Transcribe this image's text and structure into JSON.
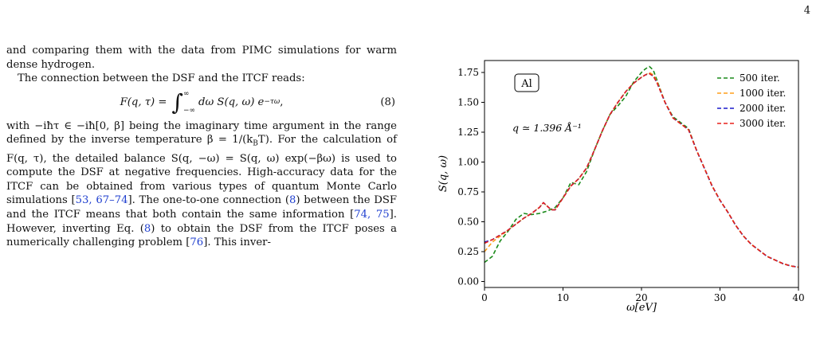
{
  "page": {
    "number": "4"
  },
  "left_column": {
    "para1": "and comparing them with the data from PIMC simulations for warm dense hydrogen.",
    "para2": "The connection between the DSF and the ITCF reads:",
    "equation": {
      "lhs": "F(q, τ) =",
      "lower": "−∞",
      "upper": "∞",
      "body": "dω S(q, ω) e",
      "exponent": "−τω",
      "tail": ",",
      "number": "(8)"
    },
    "para3_a": "with −iħτ ∈ −iħ[0, β] being the imaginary time argument in the range defined by the inverse temperature β = 1/(k",
    "para3_b": "T). For the calculation of F(q, τ), the detailed balance S(q, −ω) = S(q, ω) exp(−βω) is used to compute the DSF at negative frequencies. High-accuracy data for the ITCF can be obtained from various types of quantum Monte Carlo simulations [",
    "cite1": "53, 67–74",
    "para3_c": "]. The one-to-one connection (",
    "cite2": "8",
    "para3_d": ") between the DSF and the ITCF means that both contain the same information [",
    "cite3": "74, 75",
    "para3_e": "]. However, inverting Eq. (",
    "cite4": "8",
    "para3_f": ") to obtain the DSF from the ITCF poses a numerically challenging problem [",
    "cite5": "76",
    "para3_g": "]. This inver-"
  },
  "chart_data": {
    "type": "line",
    "xlabel": "ω[eV]",
    "ylabel": "S(q, ω)",
    "xlim": [
      0,
      40
    ],
    "ylim": [
      -0.05,
      1.85
    ],
    "xticks": [
      "0",
      "10",
      "20",
      "30",
      "40"
    ],
    "yticks": [
      "0.00",
      "0.25",
      "0.50",
      "0.75",
      "1.00",
      "1.25",
      "1.50",
      "1.75"
    ],
    "annotations": {
      "material": "Al",
      "q_label": "q ≃ 1.396 Å⁻¹"
    },
    "legend_position": "top-right",
    "series": [
      {
        "name": "500 iter.",
        "color": "#1a8a1a",
        "x": [
          0,
          1,
          2,
          3,
          4,
          5,
          6,
          7,
          8,
          9,
          10,
          11,
          12,
          13,
          14,
          15,
          16,
          17,
          18,
          19,
          20,
          20.5,
          21,
          21.5,
          22,
          23,
          24,
          25,
          26,
          27,
          28,
          29,
          30,
          31,
          32,
          33,
          34,
          35,
          36,
          37,
          38,
          39,
          40
        ],
        "y": [
          0.16,
          0.21,
          0.34,
          0.42,
          0.52,
          0.57,
          0.56,
          0.57,
          0.59,
          0.62,
          0.7,
          0.83,
          0.81,
          0.92,
          1.1,
          1.26,
          1.4,
          1.47,
          1.55,
          1.67,
          1.75,
          1.78,
          1.8,
          1.77,
          1.68,
          1.5,
          1.38,
          1.33,
          1.28,
          1.1,
          0.95,
          0.8,
          0.68,
          0.58,
          0.47,
          0.38,
          0.31,
          0.26,
          0.21,
          0.18,
          0.15,
          0.13,
          0.12
        ]
      },
      {
        "name": "1000 iter.",
        "color": "#ff9f1a",
        "x": [
          0,
          1,
          2,
          3,
          4,
          5,
          6,
          7,
          7.5,
          8,
          8.5,
          9,
          10,
          11,
          12,
          13,
          14,
          15,
          16,
          17,
          18,
          19,
          20,
          20.5,
          21,
          21.5,
          22,
          23,
          24,
          25,
          26,
          27,
          28,
          29,
          30,
          31,
          32,
          33,
          34,
          35,
          36,
          37,
          38,
          39,
          40
        ],
        "y": [
          0.25,
          0.33,
          0.38,
          0.43,
          0.48,
          0.53,
          0.57,
          0.62,
          0.66,
          0.63,
          0.6,
          0.6,
          0.7,
          0.8,
          0.86,
          0.95,
          1.1,
          1.26,
          1.4,
          1.5,
          1.59,
          1.66,
          1.71,
          1.73,
          1.75,
          1.73,
          1.67,
          1.5,
          1.37,
          1.32,
          1.27,
          1.1,
          0.95,
          0.8,
          0.68,
          0.58,
          0.47,
          0.38,
          0.31,
          0.26,
          0.21,
          0.18,
          0.15,
          0.13,
          0.12
        ]
      },
      {
        "name": "2000 iter.",
        "color": "#1a1acc",
        "x": [
          0,
          1,
          2,
          3,
          4,
          5,
          6,
          7,
          7.5,
          8,
          8.5,
          9,
          10,
          11,
          12,
          13,
          14,
          15,
          16,
          17,
          18,
          19,
          20,
          20.5,
          21,
          21.5,
          22,
          23,
          24,
          25,
          26,
          27,
          28,
          29,
          30,
          31,
          32,
          33,
          34,
          35,
          36,
          37,
          38,
          39,
          40
        ],
        "y": [
          0.33,
          0.35,
          0.39,
          0.43,
          0.48,
          0.53,
          0.57,
          0.62,
          0.66,
          0.63,
          0.6,
          0.6,
          0.7,
          0.8,
          0.86,
          0.95,
          1.1,
          1.26,
          1.4,
          1.5,
          1.59,
          1.66,
          1.71,
          1.73,
          1.74,
          1.72,
          1.66,
          1.5,
          1.37,
          1.32,
          1.27,
          1.1,
          0.95,
          0.8,
          0.68,
          0.58,
          0.47,
          0.38,
          0.31,
          0.26,
          0.21,
          0.18,
          0.15,
          0.13,
          0.12
        ]
      },
      {
        "name": "3000 iter.",
        "color": "#e8201a",
        "x": [
          0,
          1,
          2,
          3,
          4,
          5,
          6,
          7,
          7.5,
          8,
          8.5,
          9,
          10,
          11,
          12,
          13,
          14,
          15,
          16,
          17,
          18,
          19,
          20,
          20.5,
          21,
          21.5,
          22,
          23,
          24,
          25,
          26,
          27,
          28,
          29,
          30,
          31,
          32,
          33,
          34,
          35,
          36,
          37,
          38,
          39,
          40
        ],
        "y": [
          0.32,
          0.35,
          0.39,
          0.43,
          0.48,
          0.53,
          0.57,
          0.62,
          0.66,
          0.63,
          0.6,
          0.6,
          0.7,
          0.8,
          0.86,
          0.95,
          1.1,
          1.26,
          1.4,
          1.5,
          1.59,
          1.66,
          1.71,
          1.73,
          1.74,
          1.72,
          1.66,
          1.5,
          1.37,
          1.32,
          1.27,
          1.1,
          0.95,
          0.8,
          0.68,
          0.58,
          0.47,
          0.38,
          0.31,
          0.26,
          0.21,
          0.18,
          0.15,
          0.13,
          0.12
        ]
      }
    ]
  }
}
